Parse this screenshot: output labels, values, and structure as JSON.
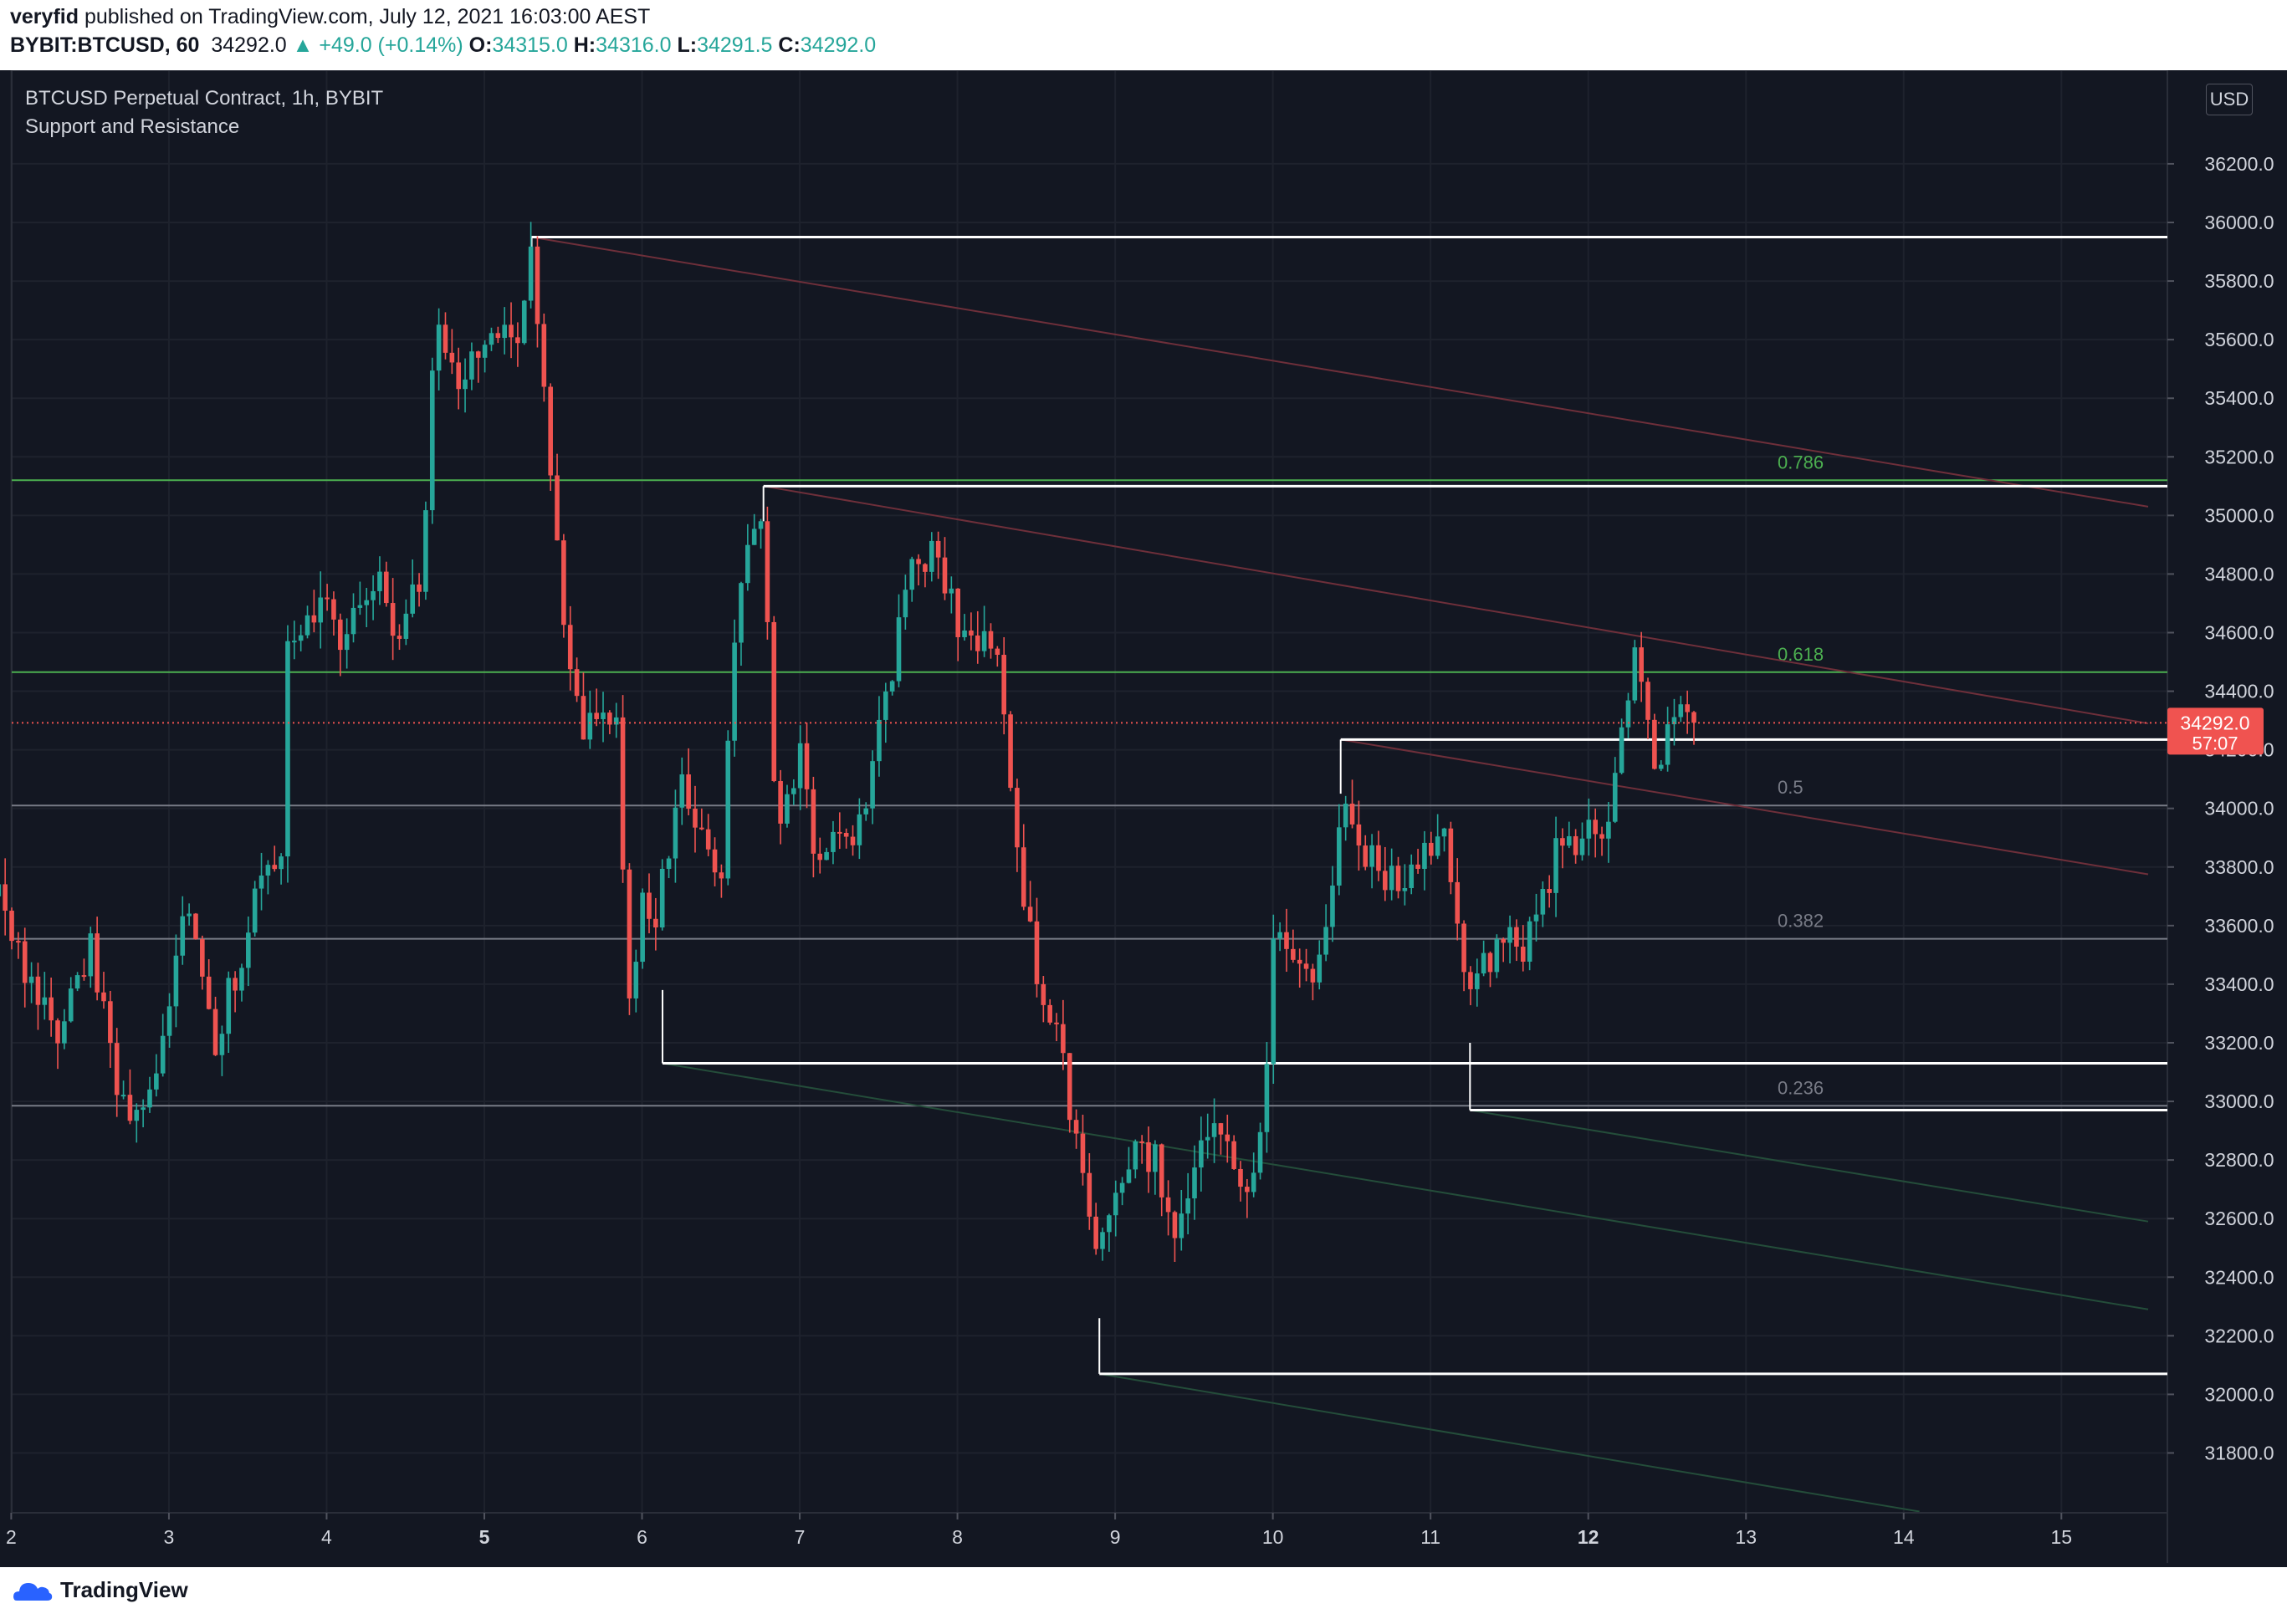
{
  "header": {
    "publisher": "veryfid",
    "published_text": "published on TradingView.com, July 12, 2021 16:03:00 AEST",
    "symbol": "BYBIT:BTCUSD, 60",
    "last": "34292.0",
    "change": "▲ +49.0 (+0.14%)",
    "o_label": "O:",
    "o_value": "34315.0",
    "h_label": "H:",
    "h_value": "34316.0",
    "l_label": "L:",
    "l_value": "34291.5",
    "c_label": "C:",
    "c_value": "34292.0"
  },
  "legend": {
    "title": "BTCUSD Perpetual Contract, 1h, BYBIT",
    "indicator": "Support and Resistance"
  },
  "price_scale": {
    "currency": "USD",
    "last_price": "34292.0",
    "countdown": "57:07"
  },
  "footer": {
    "brand": "TradingView"
  },
  "colors": {
    "background": "#131722",
    "up": "#26a69a",
    "down": "#ef5350",
    "fib_green": "#4caf50",
    "fib_gray": "#787b86",
    "level_white": "#ffffff"
  },
  "chart_data": {
    "type": "candlestick",
    "x_ticks": [
      "2",
      "3",
      "4",
      "5",
      "6",
      "7",
      "8",
      "9",
      "10",
      "11",
      "12",
      "13",
      "14",
      "15"
    ],
    "x_tick_days": [
      2,
      3,
      4,
      5,
      6,
      7,
      8,
      9,
      10,
      11,
      12,
      13,
      14,
      15
    ],
    "x_range": [
      1.9,
      15.55
    ],
    "y_ticks": [
      31800,
      32000,
      32200,
      32400,
      32600,
      32800,
      33000,
      33200,
      33400,
      33600,
      33800,
      34000,
      34200,
      34400,
      34600,
      34800,
      35000,
      35200,
      35400,
      35600,
      35800,
      36000,
      36200
    ],
    "y_range": [
      31560,
      36380
    ],
    "last_price": 34292.0,
    "fib_levels": [
      {
        "label": "0.786",
        "price": 35120,
        "color": "green"
      },
      {
        "label": "0.618",
        "price": 34465,
        "color": "green"
      },
      {
        "label": "0.5",
        "price": 34010,
        "color": "gray"
      },
      {
        "label": "0.382",
        "price": 33555,
        "color": "gray"
      },
      {
        "label": "0.236",
        "price": 32985,
        "color": "gray"
      }
    ],
    "horizontal_levels": [
      {
        "from_day": 5.3,
        "price": 35950
      },
      {
        "from_day": 6.77,
        "price": 35100
      },
      {
        "from_day": 10.43,
        "price": 34235
      },
      {
        "from_day": 6.13,
        "price": 33130
      },
      {
        "from_day": 11.25,
        "price": 32970
      },
      {
        "from_day": 8.9,
        "price": 32070
      }
    ],
    "trend_lines": [
      {
        "color": "down",
        "points": [
          [
            5.3,
            35950
          ],
          [
            15.55,
            35030
          ]
        ]
      },
      {
        "color": "down",
        "points": [
          [
            6.77,
            35100
          ],
          [
            15.55,
            34290
          ]
        ]
      },
      {
        "color": "down",
        "points": [
          [
            10.43,
            34235
          ],
          [
            15.55,
            33775
          ]
        ]
      },
      {
        "color": "up",
        "points": [
          [
            6.13,
            33130
          ],
          [
            15.55,
            32290
          ]
        ]
      },
      {
        "color": "up",
        "points": [
          [
            11.25,
            32970
          ],
          [
            15.55,
            32590
          ]
        ]
      },
      {
        "color": "up",
        "points": [
          [
            8.9,
            32070
          ],
          [
            14.1,
            31600
          ]
        ]
      }
    ],
    "anchors": [
      [
        5.3,
        35950,
        35900
      ],
      [
        6.77,
        35100,
        34980
      ],
      [
        10.43,
        34235,
        34050
      ],
      [
        6.13,
        33130,
        33380
      ],
      [
        11.25,
        32970,
        33200
      ],
      [
        8.9,
        32070,
        32260
      ]
    ],
    "price_path": [
      [
        1.9,
        33700
      ],
      [
        2.1,
        33450
      ],
      [
        2.3,
        33200
      ],
      [
        2.5,
        33550
      ],
      [
        2.7,
        33000
      ],
      [
        2.85,
        32950
      ],
      [
        3.0,
        33300
      ],
      [
        3.1,
        33750
      ],
      [
        3.3,
        33200
      ],
      [
        3.5,
        33600
      ],
      [
        3.6,
        33850
      ],
      [
        3.7,
        33700
      ],
      [
        3.75,
        34550
      ],
      [
        4.0,
        34700
      ],
      [
        4.1,
        34550
      ],
      [
        4.3,
        34800
      ],
      [
        4.45,
        34550
      ],
      [
        4.6,
        34800
      ],
      [
        4.7,
        35700
      ],
      [
        4.85,
        35450
      ],
      [
        5.0,
        35550
      ],
      [
        5.2,
        35600
      ],
      [
        5.3,
        35950
      ],
      [
        5.4,
        35300
      ],
      [
        5.5,
        34700
      ],
      [
        5.6,
        34300
      ],
      [
        5.8,
        34250
      ],
      [
        5.85,
        34350
      ],
      [
        5.9,
        33300
      ],
      [
        6.0,
        33650
      ],
      [
        6.1,
        33650
      ],
      [
        6.25,
        34100
      ],
      [
        6.4,
        33900
      ],
      [
        6.5,
        33800
      ],
      [
        6.6,
        34700
      ],
      [
        6.7,
        34900
      ],
      [
        6.77,
        35000
      ],
      [
        6.85,
        33850
      ],
      [
        7.0,
        34200
      ],
      [
        7.1,
        33800
      ],
      [
        7.3,
        33900
      ],
      [
        7.4,
        34000
      ],
      [
        7.5,
        34250
      ],
      [
        7.6,
        34500
      ],
      [
        7.7,
        34800
      ],
      [
        7.85,
        34900
      ],
      [
        8.0,
        34650
      ],
      [
        8.15,
        34550
      ],
      [
        8.25,
        34500
      ],
      [
        8.4,
        33700
      ],
      [
        8.5,
        33450
      ],
      [
        8.6,
        33300
      ],
      [
        8.75,
        32900
      ],
      [
        8.85,
        32500
      ],
      [
        8.95,
        32600
      ],
      [
        9.1,
        32800
      ],
      [
        9.25,
        32800
      ],
      [
        9.4,
        32500
      ],
      [
        9.5,
        32800
      ],
      [
        9.65,
        32900
      ],
      [
        9.85,
        32700
      ],
      [
        9.95,
        33000
      ],
      [
        10.0,
        33600
      ],
      [
        10.15,
        33500
      ],
      [
        10.3,
        33450
      ],
      [
        10.45,
        34000
      ],
      [
        10.6,
        33850
      ],
      [
        10.8,
        33700
      ],
      [
        11.0,
        33850
      ],
      [
        11.1,
        33950
      ],
      [
        11.2,
        33450
      ],
      [
        11.3,
        33400
      ],
      [
        11.45,
        33550
      ],
      [
        11.6,
        33500
      ],
      [
        11.8,
        33850
      ],
      [
        12.0,
        33950
      ],
      [
        12.1,
        33900
      ],
      [
        12.3,
        34500
      ],
      [
        12.45,
        34100
      ],
      [
        12.55,
        34350
      ],
      [
        12.7,
        34292
      ]
    ]
  }
}
